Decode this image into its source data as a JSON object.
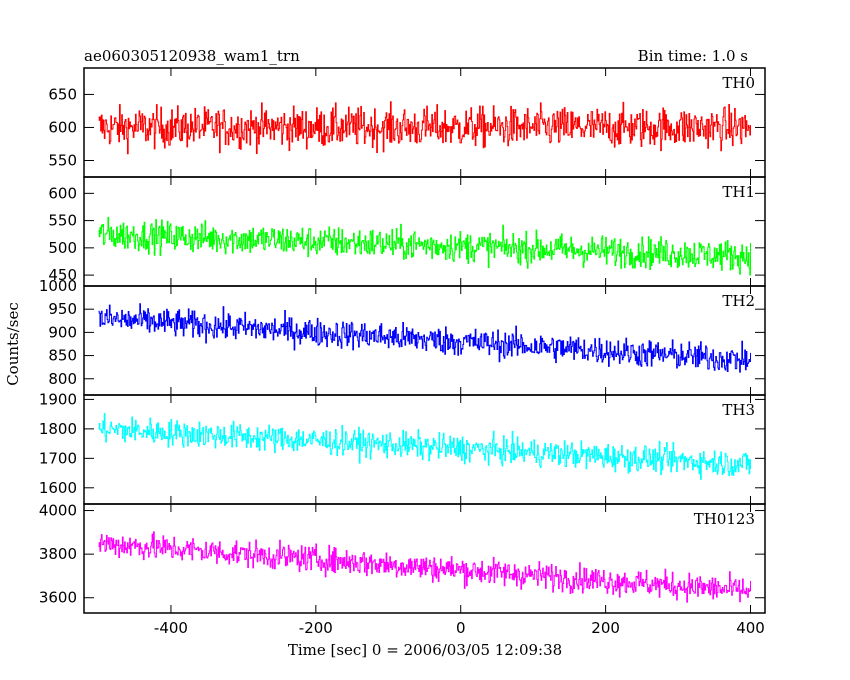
{
  "header": {
    "title": "ae060305120938_wam1_trn",
    "bin_time": "Bin time: 1.0 s"
  },
  "chart_data": {
    "type": "line",
    "xlabel": "Time [sec] 0 = 2006/03/05 12:09:38",
    "ylabel": "Counts/sec",
    "xlim": [
      -520,
      420
    ],
    "x_ticks": [
      -400,
      -200,
      0,
      200,
      400
    ],
    "x_range": [
      -500,
      400
    ],
    "bin_time_s": 1.0,
    "panels": [
      {
        "name": "TH0",
        "color": "#ff0000",
        "ylim": [
          525,
          690
        ],
        "y_ticks": [
          550,
          600,
          650
        ],
        "start": 600,
        "end": 600,
        "noise": 30
      },
      {
        "name": "TH1",
        "color": "#00ff00",
        "ylim": [
          430,
          630
        ],
        "y_ticks": [
          450,
          500,
          550,
          600
        ],
        "start": 525,
        "end": 485,
        "noise": 28
      },
      {
        "name": "TH2",
        "color": "#0000ff",
        "ylim": [
          765,
          1000
        ],
        "y_ticks": [
          800,
          850,
          900,
          950,
          1000
        ],
        "start": 930,
        "end": 840,
        "noise": 30
      },
      {
        "name": "TH3",
        "color": "#00ffff",
        "ylim": [
          1545,
          1915
        ],
        "y_ticks": [
          1600,
          1700,
          1800,
          1900
        ],
        "start": 1800,
        "end": 1680,
        "noise": 45
      },
      {
        "name": "TH0123",
        "color": "#ff00ff",
        "ylim": [
          3530,
          4030
        ],
        "y_ticks": [
          3600,
          3800,
          4000
        ],
        "start": 3850,
        "end": 3630,
        "noise": 60
      }
    ]
  }
}
